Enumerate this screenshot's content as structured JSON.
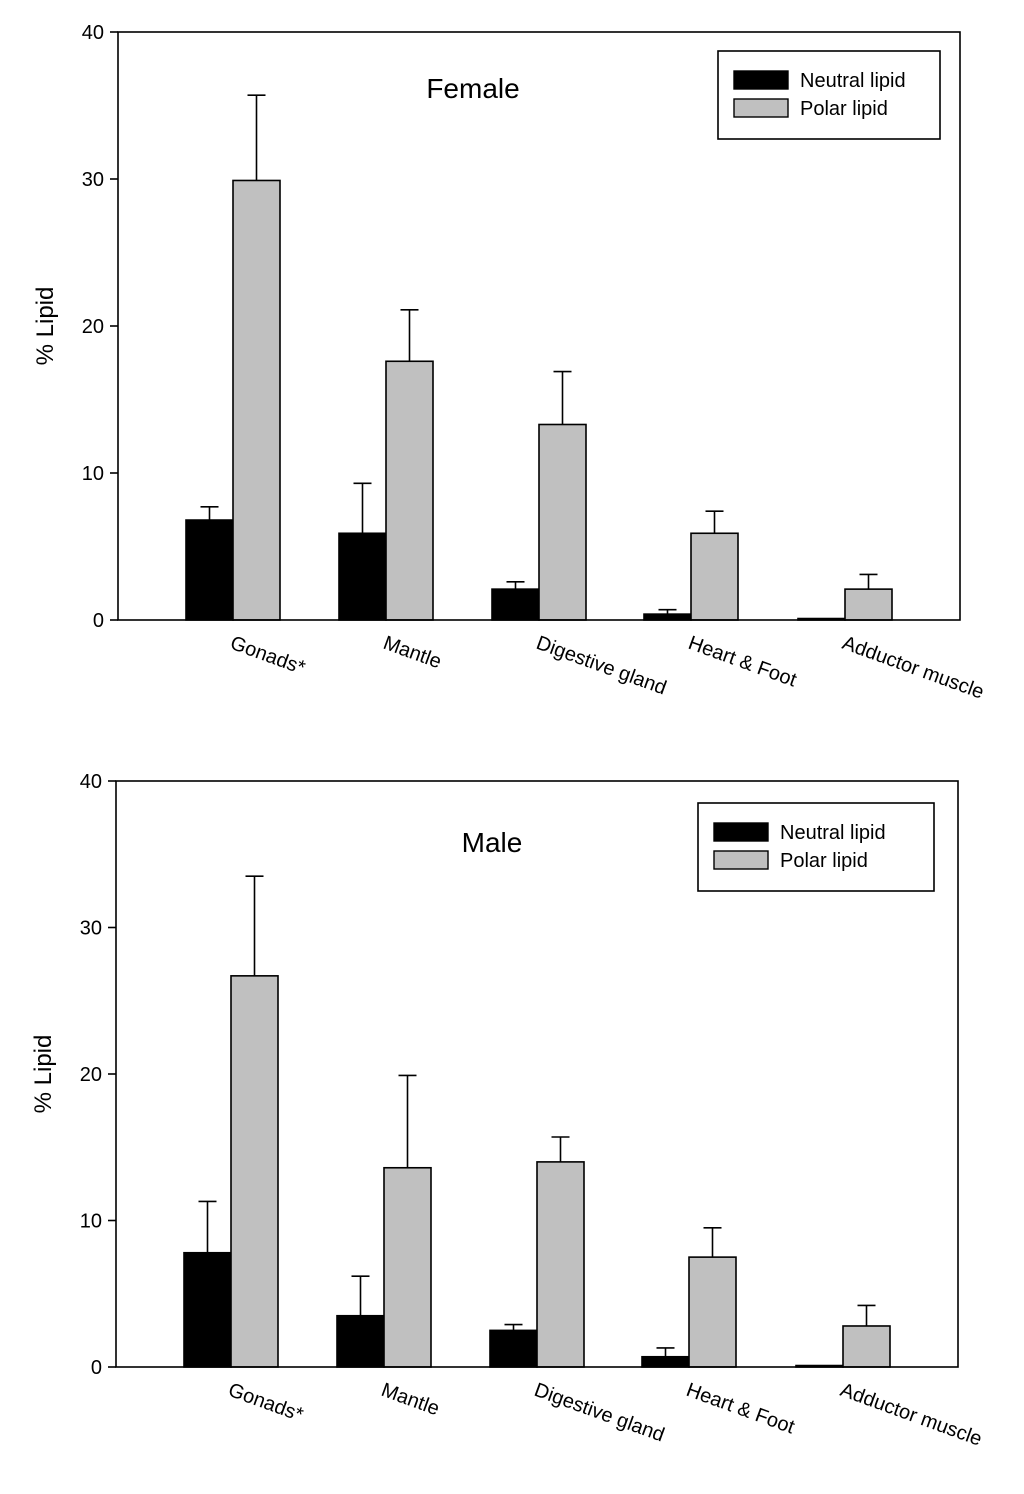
{
  "chart_data": [
    {
      "type": "bar",
      "title": "Female",
      "ylabel": "% Lipid",
      "xlabel": "",
      "ylim": [
        0,
        40
      ],
      "yticks": [
        "0",
        "10",
        "20",
        "30",
        "40"
      ],
      "categories": [
        "Gonads*",
        "Mantle",
        "Digestive gland",
        "Heart & Foot",
        "Adductor muscle"
      ],
      "legend_position": "top-right",
      "series": [
        {
          "name": "Neutral lipid",
          "color": "#000000",
          "values": [
            6.8,
            5.9,
            2.1,
            0.4,
            0.1
          ],
          "errors": [
            0.9,
            3.4,
            0.5,
            0.3,
            0.0
          ]
        },
        {
          "name": "Polar lipid",
          "color": "#c0c0c0",
          "values": [
            29.9,
            17.6,
            13.3,
            5.9,
            2.1
          ],
          "errors": [
            5.8,
            3.5,
            3.6,
            1.5,
            1.0
          ]
        }
      ]
    },
    {
      "type": "bar",
      "title": "Male",
      "ylabel": "% Lipid",
      "xlabel": "",
      "ylim": [
        0,
        40
      ],
      "yticks": [
        "0",
        "10",
        "20",
        "30",
        "40"
      ],
      "categories": [
        "Gonads*",
        "Mantle",
        "Digestive gland",
        "Heart & Foot",
        "Adductor muscle"
      ],
      "legend_position": "top-right",
      "series": [
        {
          "name": "Neutral  lipid",
          "color": "#000000",
          "values": [
            7.8,
            3.5,
            2.5,
            0.7,
            0.1
          ],
          "errors": [
            3.5,
            2.7,
            0.4,
            0.6,
            0.0
          ]
        },
        {
          "name": "Polar lipid",
          "color": "#c0c0c0",
          "values": [
            26.7,
            13.6,
            14.0,
            7.5,
            2.8
          ],
          "errors": [
            6.8,
            6.3,
            1.7,
            2.0,
            1.4
          ]
        }
      ]
    }
  ]
}
